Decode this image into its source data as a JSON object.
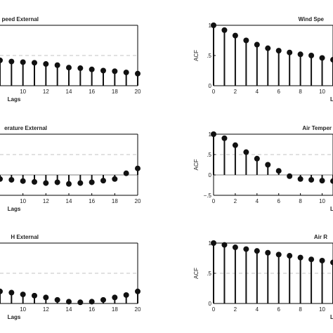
{
  "chart_data": [
    {
      "type": "stem",
      "title": "peed External",
      "xlabel": "Lags",
      "ylabel": "",
      "x": [
        8,
        9,
        10,
        11,
        12,
        13,
        14,
        15,
        16,
        17,
        18,
        19,
        20
      ],
      "values": [
        0.42,
        0.4,
        0.39,
        0.38,
        0.36,
        0.34,
        0.3,
        0.29,
        0.27,
        0.25,
        0.24,
        0.22,
        0.2
      ],
      "xlim": [
        8,
        20
      ],
      "ylim": [
        0,
        1
      ],
      "xticks": [
        10,
        12,
        14,
        16,
        18,
        20
      ],
      "yticks": [],
      "threshold": 0.5,
      "colors": {
        "stem": "#111111",
        "threshold": "#b0b0b0",
        "axis": "#000000"
      }
    },
    {
      "type": "stem",
      "title": "Wind Spe",
      "xlabel": "L",
      "ylabel": "ACF",
      "x": [
        0,
        1,
        2,
        3,
        4,
        5,
        6,
        7,
        8,
        9,
        10,
        11
      ],
      "values": [
        1.0,
        0.92,
        0.83,
        0.75,
        0.68,
        0.62,
        0.58,
        0.55,
        0.52,
        0.5,
        0.46,
        0.43
      ],
      "xlim": [
        0,
        11
      ],
      "ylim": [
        0,
        1
      ],
      "xticks": [
        0,
        2,
        4,
        6,
        8,
        10
      ],
      "yticks": [
        0,
        0.5,
        1
      ],
      "threshold": null,
      "colors": {
        "stem": "#111111",
        "threshold": "#b0b0b0",
        "axis": "#000000"
      }
    },
    {
      "type": "stem",
      "title": "erature External",
      "xlabel": "Lags",
      "ylabel": "",
      "x": [
        8,
        9,
        10,
        11,
        12,
        13,
        14,
        15,
        16,
        17,
        18,
        19,
        20
      ],
      "values": [
        -0.1,
        -0.12,
        -0.15,
        -0.17,
        -0.2,
        -0.18,
        -0.22,
        -0.2,
        -0.18,
        -0.14,
        -0.1,
        0.04,
        0.16
      ],
      "xlim": [
        8,
        20
      ],
      "ylim": [
        -0.5,
        1
      ],
      "xticks": [
        10,
        12,
        14,
        16,
        18,
        20
      ],
      "yticks": [],
      "threshold": 0.5,
      "colors": {
        "stem": "#111111",
        "threshold": "#b0b0b0",
        "axis": "#000000"
      }
    },
    {
      "type": "stem",
      "title": "Air Temper",
      "xlabel": "L",
      "ylabel": "ACF",
      "x": [
        0,
        1,
        2,
        3,
        4,
        5,
        6,
        7,
        8,
        9,
        10,
        11
      ],
      "values": [
        1.0,
        0.9,
        0.73,
        0.56,
        0.4,
        0.25,
        0.1,
        -0.03,
        -0.1,
        -0.12,
        -0.14,
        -0.15
      ],
      "xlim": [
        0,
        11
      ],
      "ylim": [
        -0.5,
        1
      ],
      "xticks": [
        0,
        2,
        4,
        6,
        8,
        10
      ],
      "yticks": [
        -0.5,
        0,
        0.5,
        1
      ],
      "threshold": 0.5,
      "colors": {
        "stem": "#111111",
        "threshold": "#b0b0b0",
        "axis": "#000000"
      }
    },
    {
      "type": "stem",
      "title": "H External",
      "xlabel": "Lags",
      "ylabel": "",
      "x": [
        8,
        9,
        10,
        11,
        12,
        13,
        14,
        15,
        16,
        17,
        18,
        19,
        20
      ],
      "values": [
        0.2,
        0.18,
        0.15,
        0.13,
        0.1,
        0.06,
        0.03,
        0.02,
        0.03,
        0.06,
        0.1,
        0.14,
        0.2
      ],
      "xlim": [
        8,
        20
      ],
      "ylim": [
        0,
        1
      ],
      "xticks": [
        10,
        12,
        14,
        16,
        18,
        20
      ],
      "yticks": [],
      "threshold": 0.5,
      "colors": {
        "stem": "#111111",
        "threshold": "#b0b0b0",
        "axis": "#000000"
      }
    },
    {
      "type": "stem",
      "title": "Air R",
      "xlabel": "L",
      "ylabel": "ACF",
      "x": [
        0,
        1,
        2,
        3,
        4,
        5,
        6,
        7,
        8,
        9,
        10,
        11
      ],
      "values": [
        1.0,
        0.97,
        0.93,
        0.9,
        0.87,
        0.84,
        0.81,
        0.79,
        0.76,
        0.73,
        0.71,
        0.68
      ],
      "xlim": [
        0,
        11
      ],
      "ylim": [
        0,
        1
      ],
      "xticks": [
        0,
        2,
        4,
        6,
        8,
        10
      ],
      "yticks": [
        0,
        0.5,
        1
      ],
      "threshold": 0.5,
      "colors": {
        "stem": "#111111",
        "threshold": "#b0b0b0",
        "axis": "#000000"
      }
    }
  ]
}
